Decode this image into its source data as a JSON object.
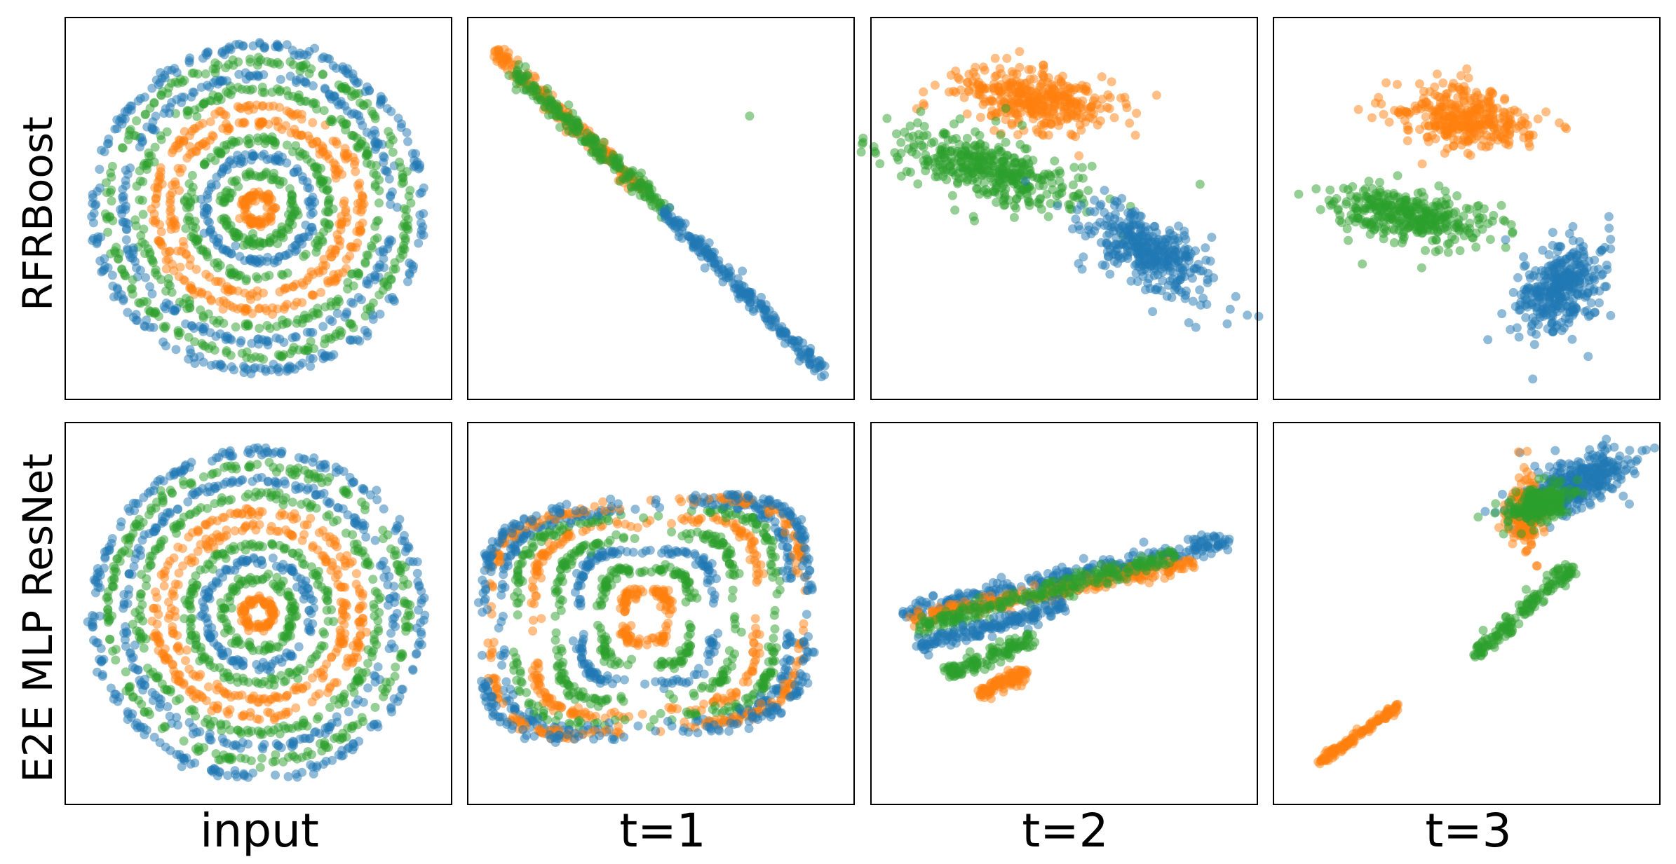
{
  "figure": {
    "row_labels": [
      "RFRBoost",
      "E2E MLP ResNet"
    ],
    "col_labels": [
      "input",
      "t=1",
      "t=2",
      "t=3"
    ],
    "colors": {
      "blue": "#1f77b4",
      "orange": "#ff7f0e",
      "green": "#2ca02c"
    },
    "series_names": [
      "blue",
      "orange",
      "green"
    ]
  },
  "chart_data": [
    {
      "type": "scatter",
      "model": "RFRBoost",
      "stage": "input",
      "xlim": [
        -1,
        1
      ],
      "ylim": [
        -1,
        1
      ],
      "axes_visible": false,
      "structure": "concentric rings",
      "rings": [
        {
          "radius": 0.08,
          "color": "orange"
        },
        {
          "radius": 0.19,
          "color": "green"
        },
        {
          "radius": 0.29,
          "color": "blue"
        },
        {
          "radius": 0.38,
          "color": "green"
        },
        {
          "radius": 0.47,
          "color": "orange"
        },
        {
          "radius": 0.56,
          "color": "orange"
        },
        {
          "radius": 0.65,
          "color": "green"
        },
        {
          "radius": 0.73,
          "color": "blue"
        },
        {
          "radius": 0.81,
          "color": "green"
        },
        {
          "radius": 0.89,
          "color": "blue"
        }
      ]
    },
    {
      "type": "scatter",
      "model": "RFRBoost",
      "stage": "t=1",
      "xlim": [
        0,
        1
      ],
      "ylim": [
        0,
        1
      ],
      "axes_visible": false,
      "structure": "points along a diagonal line",
      "segments": [
        {
          "color": "orange",
          "from": [
            0.05,
            0.93
          ],
          "to": [
            0.45,
            0.55
          ],
          "spread": 0.01
        },
        {
          "color": "green",
          "from": [
            0.1,
            0.88
          ],
          "to": [
            0.52,
            0.49
          ],
          "spread": 0.012
        },
        {
          "color": "blue",
          "from": [
            0.5,
            0.5
          ],
          "to": [
            0.95,
            0.04
          ],
          "spread": 0.01
        }
      ]
    },
    {
      "type": "scatter",
      "model": "RFRBoost",
      "stage": "t=2",
      "xlim": [
        0,
        1
      ],
      "ylim": [
        0,
        1
      ],
      "axes_visible": false,
      "structure": "three clusters",
      "clusters": [
        {
          "color": "orange",
          "center": [
            0.42,
            0.8
          ],
          "sx": 0.1,
          "sy": 0.04,
          "rot": -0.15
        },
        {
          "color": "green",
          "center": [
            0.29,
            0.61
          ],
          "sx": 0.12,
          "sy": 0.04,
          "rot": -0.25
        },
        {
          "color": "blue",
          "center": [
            0.73,
            0.38
          ],
          "sx": 0.09,
          "sy": 0.04,
          "rot": -0.6
        }
      ]
    },
    {
      "type": "scatter",
      "model": "RFRBoost",
      "stage": "t=3",
      "xlim": [
        0,
        1
      ],
      "ylim": [
        0,
        1
      ],
      "axes_visible": false,
      "structure": "three clusters",
      "clusters": [
        {
          "color": "orange",
          "center": [
            0.5,
            0.75
          ],
          "sx": 0.08,
          "sy": 0.04,
          "rot": -0.15
        },
        {
          "color": "green",
          "center": [
            0.35,
            0.48
          ],
          "sx": 0.1,
          "sy": 0.03,
          "rot": -0.15
        },
        {
          "color": "blue",
          "center": [
            0.75,
            0.28
          ],
          "sx": 0.05,
          "sy": 0.07,
          "rot": -0.6
        }
      ]
    },
    {
      "type": "scatter",
      "model": "E2E MLP ResNet",
      "stage": "input",
      "xlim": [
        -1,
        1
      ],
      "ylim": [
        -1,
        1
      ],
      "axes_visible": false,
      "structure": "concentric rings",
      "rings": [
        {
          "radius": 0.08,
          "color": "orange"
        },
        {
          "radius": 0.19,
          "color": "green"
        },
        {
          "radius": 0.29,
          "color": "blue"
        },
        {
          "radius": 0.38,
          "color": "green"
        },
        {
          "radius": 0.47,
          "color": "orange"
        },
        {
          "radius": 0.56,
          "color": "orange"
        },
        {
          "radius": 0.65,
          "color": "green"
        },
        {
          "radius": 0.73,
          "color": "blue"
        },
        {
          "radius": 0.81,
          "color": "green"
        },
        {
          "radius": 0.89,
          "color": "blue"
        }
      ]
    },
    {
      "type": "scatter",
      "model": "E2E MLP ResNet",
      "stage": "t=1",
      "xlim": [
        0,
        1
      ],
      "ylim": [
        0,
        1
      ],
      "axes_visible": false,
      "structure": "nested rounded rectangles",
      "center": [
        0.46,
        0.49
      ],
      "loops": [
        {
          "color": "orange",
          "hx": 0.06,
          "hy": 0.07
        },
        {
          "color": "green",
          "hx": 0.12,
          "hy": 0.13
        },
        {
          "color": "blue",
          "hx": 0.18,
          "hy": 0.18
        },
        {
          "color": "green",
          "hx": 0.24,
          "hy": 0.22
        },
        {
          "color": "orange",
          "hx": 0.3,
          "hy": 0.26
        },
        {
          "color": "green",
          "hx": 0.35,
          "hy": 0.28
        },
        {
          "color": "blue",
          "hx": 0.39,
          "hy": 0.3
        },
        {
          "color": "orange",
          "hx": 0.42,
          "hy": 0.31
        },
        {
          "color": "blue",
          "hx": 0.44,
          "hy": 0.32
        }
      ]
    },
    {
      "type": "scatter",
      "model": "E2E MLP ResNet",
      "stage": "t=2",
      "xlim": [
        0,
        1
      ],
      "ylim": [
        0,
        1
      ],
      "axes_visible": false,
      "structure": "elongated bands",
      "bands": [
        {
          "color": "blue",
          "from": [
            0.06,
            0.5
          ],
          "to": [
            0.95,
            0.7
          ],
          "spread": 0.015
        },
        {
          "color": "orange",
          "from": [
            0.08,
            0.48
          ],
          "to": [
            0.85,
            0.64
          ],
          "spread": 0.012
        },
        {
          "color": "green",
          "from": [
            0.1,
            0.46
          ],
          "to": [
            0.8,
            0.66
          ],
          "spread": 0.012
        },
        {
          "color": "blue",
          "from": [
            0.1,
            0.41
          ],
          "to": [
            0.5,
            0.52
          ],
          "spread": 0.012
        },
        {
          "color": "green",
          "from": [
            0.18,
            0.33
          ],
          "to": [
            0.42,
            0.43
          ],
          "spread": 0.012
        },
        {
          "color": "orange",
          "from": [
            0.27,
            0.28
          ],
          "to": [
            0.4,
            0.34
          ],
          "spread": 0.01
        }
      ]
    },
    {
      "type": "scatter",
      "model": "E2E MLP ResNet",
      "stage": "t=3",
      "xlim": [
        0,
        1
      ],
      "ylim": [
        0,
        1
      ],
      "axes_visible": false,
      "structure": "two lines and a cluster",
      "segments": [
        {
          "color": "orange",
          "from": [
            0.1,
            0.09
          ],
          "to": [
            0.32,
            0.25
          ],
          "spread": 0.006
        },
        {
          "color": "green",
          "from": [
            0.52,
            0.38
          ],
          "to": [
            0.79,
            0.63
          ],
          "spread": 0.012
        }
      ],
      "clusters": [
        {
          "color": "blue",
          "center": [
            0.8,
            0.86
          ],
          "sx": 0.07,
          "sy": 0.03,
          "rot": 0.4
        },
        {
          "color": "orange",
          "center": [
            0.66,
            0.77
          ],
          "sx": 0.02,
          "sy": 0.04,
          "rot": 0.0
        },
        {
          "color": "green",
          "center": [
            0.7,
            0.8
          ],
          "sx": 0.04,
          "sy": 0.02,
          "rot": 0.3
        }
      ]
    }
  ]
}
